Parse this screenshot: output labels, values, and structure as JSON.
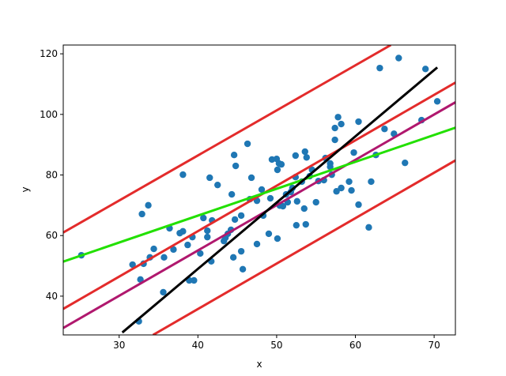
{
  "chart_data": {
    "type": "scatter",
    "xlabel": "x",
    "ylabel": "y",
    "xlim": [
      22.9,
      72.7
    ],
    "ylim": [
      27.2,
      122.9
    ],
    "xticks": [
      30,
      40,
      50,
      60,
      70
    ],
    "yticks": [
      40,
      60,
      80,
      100,
      120
    ],
    "color": "#1f77b4",
    "x": [
      25.2,
      31.7,
      32.9,
      33.7,
      32.7,
      33.1,
      33.9,
      34.4,
      32.5,
      35.6,
      35.7,
      36.4,
      36.9,
      37.7,
      38.1,
      38.1,
      38.7,
      38.9,
      39.5,
      39.3,
      40.3,
      40.7,
      41.2,
      41.2,
      41.5,
      41.7,
      41.8,
      42.5,
      43.3,
      43.5,
      43.8,
      44.2,
      44.3,
      44.5,
      44.6,
      44.7,
      44.8,
      45.5,
      45.5,
      45.7,
      46.3,
      46.8,
      46.6,
      47.5,
      47.5,
      48.1,
      48.3,
      49,
      49.2,
      49.4,
      50,
      50.1,
      50.1,
      50.3,
      50.6,
      50.4,
      50.8,
      51.2,
      51.4,
      51.8,
      52,
      52.4,
      52.4,
      52.5,
      52.6,
      53.2,
      53.5,
      53.6,
      53.7,
      53.8,
      54.2,
      54.5,
      55,
      55.3,
      56,
      56.2,
      56.8,
      56.8,
      57,
      57.4,
      57.4,
      57.6,
      57.8,
      58.2,
      58.2,
      59.2,
      59.5,
      59.8,
      60.4,
      60.4,
      61.7,
      62,
      62.6,
      63.1,
      63.7,
      64.9,
      65.5,
      66.3,
      68.4,
      68.9,
      70.4
    ],
    "values": [
      53.5,
      50.4,
      67.1,
      70,
      45.5,
      50.7,
      52.8,
      55.6,
      31.7,
      41.3,
      52.8,
      62.4,
      55.4,
      60.8,
      61.4,
      80.1,
      56.9,
      45.2,
      45.2,
      59.5,
      54.1,
      65.8,
      59.5,
      61.6,
      79.1,
      51.5,
      65,
      76.7,
      58.2,
      59.3,
      60.6,
      61.9,
      73.6,
      52.8,
      86.6,
      65.3,
      83,
      66.6,
      54.8,
      48.9,
      90.3,
      79.1,
      72,
      57.2,
      71.5,
      75.2,
      66.6,
      60.6,
      72.3,
      85.1,
      85.3,
      81.7,
      59,
      83.8,
      83.5,
      69.9,
      69.7,
      73.6,
      71,
      74.4,
      75.7,
      79.3,
      86.4,
      63.4,
      71.3,
      77.8,
      68.9,
      87.7,
      63.7,
      85.8,
      79.6,
      81.7,
      71,
      78,
      78.3,
      85.6,
      83.8,
      82.7,
      80.1,
      95.5,
      91.6,
      74.6,
      99.1,
      96.8,
      75.7,
      77.8,
      74.9,
      87.4,
      97.6,
      70.2,
      62.7,
      77.8,
      86.6,
      115.3,
      95.2,
      93.6,
      118.6,
      84,
      98.1,
      115,
      104.3
    ],
    "lines": [
      {
        "color": "#e32b2b",
        "x": [
          22.9,
          64.5
        ],
        "values": [
          61,
          122.9
        ]
      },
      {
        "color": "#e32b2b",
        "x": [
          22.9,
          72.7
        ],
        "values": [
          35.8,
          110.5
        ]
      },
      {
        "color": "#e32b2b",
        "x": [
          34.3,
          72.7
        ],
        "values": [
          27.2,
          84.8
        ]
      },
      {
        "color": "#b0186e",
        "x": [
          22.9,
          72.7
        ],
        "values": [
          29.5,
          104
        ]
      },
      {
        "color": "#22e000",
        "x": [
          22.9,
          72.7
        ],
        "values": [
          51.4,
          95.6
        ]
      },
      {
        "color": "#000000",
        "x": [
          30.4,
          70.4
        ],
        "values": [
          28,
          115.5
        ]
      }
    ]
  }
}
